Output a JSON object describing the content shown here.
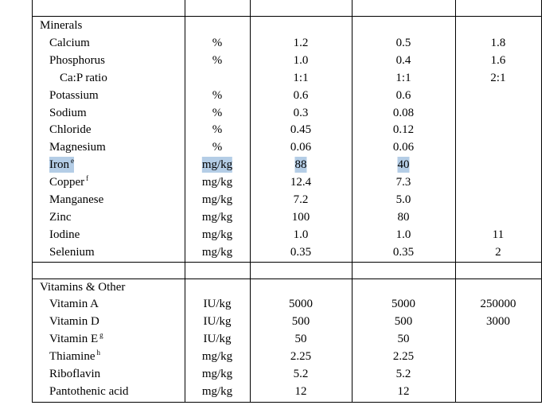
{
  "table": {
    "rows": [
      {
        "section": "Minerals"
      },
      {
        "nutrient": "Calcium",
        "unit": "%",
        "c1": "1.2",
        "c2": "0.5",
        "c3": "1.8"
      },
      {
        "nutrient": "Phosphorus",
        "unit": "%",
        "c1": "1.0",
        "c2": "0.4",
        "c3": "1.6"
      },
      {
        "nutrient": "Ca:P ratio",
        "level": 2,
        "c1": "1:1",
        "c2": "1:1",
        "c3": "2:1"
      },
      {
        "nutrient": "Potassium",
        "unit": "%",
        "c1": "0.6",
        "c2": "0.6"
      },
      {
        "nutrient": "Sodium",
        "unit": "%",
        "c1": "0.3",
        "c2": "0.08"
      },
      {
        "nutrient": "Chloride",
        "unit": "%",
        "c1": "0.45",
        "c2": "0.12"
      },
      {
        "nutrient": "Magnesium",
        "unit": "%",
        "c1": "0.06",
        "c2": "0.06"
      },
      {
        "nutrient": "Iron",
        "note": "e",
        "unit": "mg/kg",
        "c1": "88",
        "c2": "40",
        "highlighted": true
      },
      {
        "nutrient": "Copper",
        "note": "f",
        "unit": "mg/kg",
        "c1": "12.4",
        "c2": "7.3"
      },
      {
        "nutrient": "Manganese",
        "unit": "mg/kg",
        "c1": "7.2",
        "c2": "5.0"
      },
      {
        "nutrient": "Zinc",
        "unit": "mg/kg",
        "c1": "100",
        "c2": "80"
      },
      {
        "nutrient": "Iodine",
        "unit": "mg/kg",
        "c1": "1.0",
        "c2": "1.0",
        "c3": "11"
      },
      {
        "nutrient": "Selenium",
        "unit": "mg/kg",
        "c1": "0.35",
        "c2": "0.35",
        "c3": "2"
      },
      {
        "blank": true
      },
      {
        "section": "Vitamins & Other"
      },
      {
        "nutrient": "Vitamin A",
        "unit": "IU/kg",
        "c1": "5000",
        "c2": "5000",
        "c3": "250000"
      },
      {
        "nutrient": "Vitamin D",
        "unit": "IU/kg",
        "c1": "500",
        "c2": "500",
        "c3": "3000"
      },
      {
        "nutrient": "Vitamin E",
        "note": "g",
        "unit": "IU/kg",
        "c1": "50",
        "c2": "50"
      },
      {
        "nutrient": "Thiamine",
        "note": "h",
        "unit": "mg/kg",
        "c1": "2.25",
        "c2": "2.25"
      },
      {
        "nutrient": "Riboflavin",
        "unit": "mg/kg",
        "c1": "5.2",
        "c2": "5.2"
      },
      {
        "nutrient": "Pantothenic acid",
        "unit": "mg/kg",
        "c1": "12",
        "c2": "12"
      }
    ]
  }
}
